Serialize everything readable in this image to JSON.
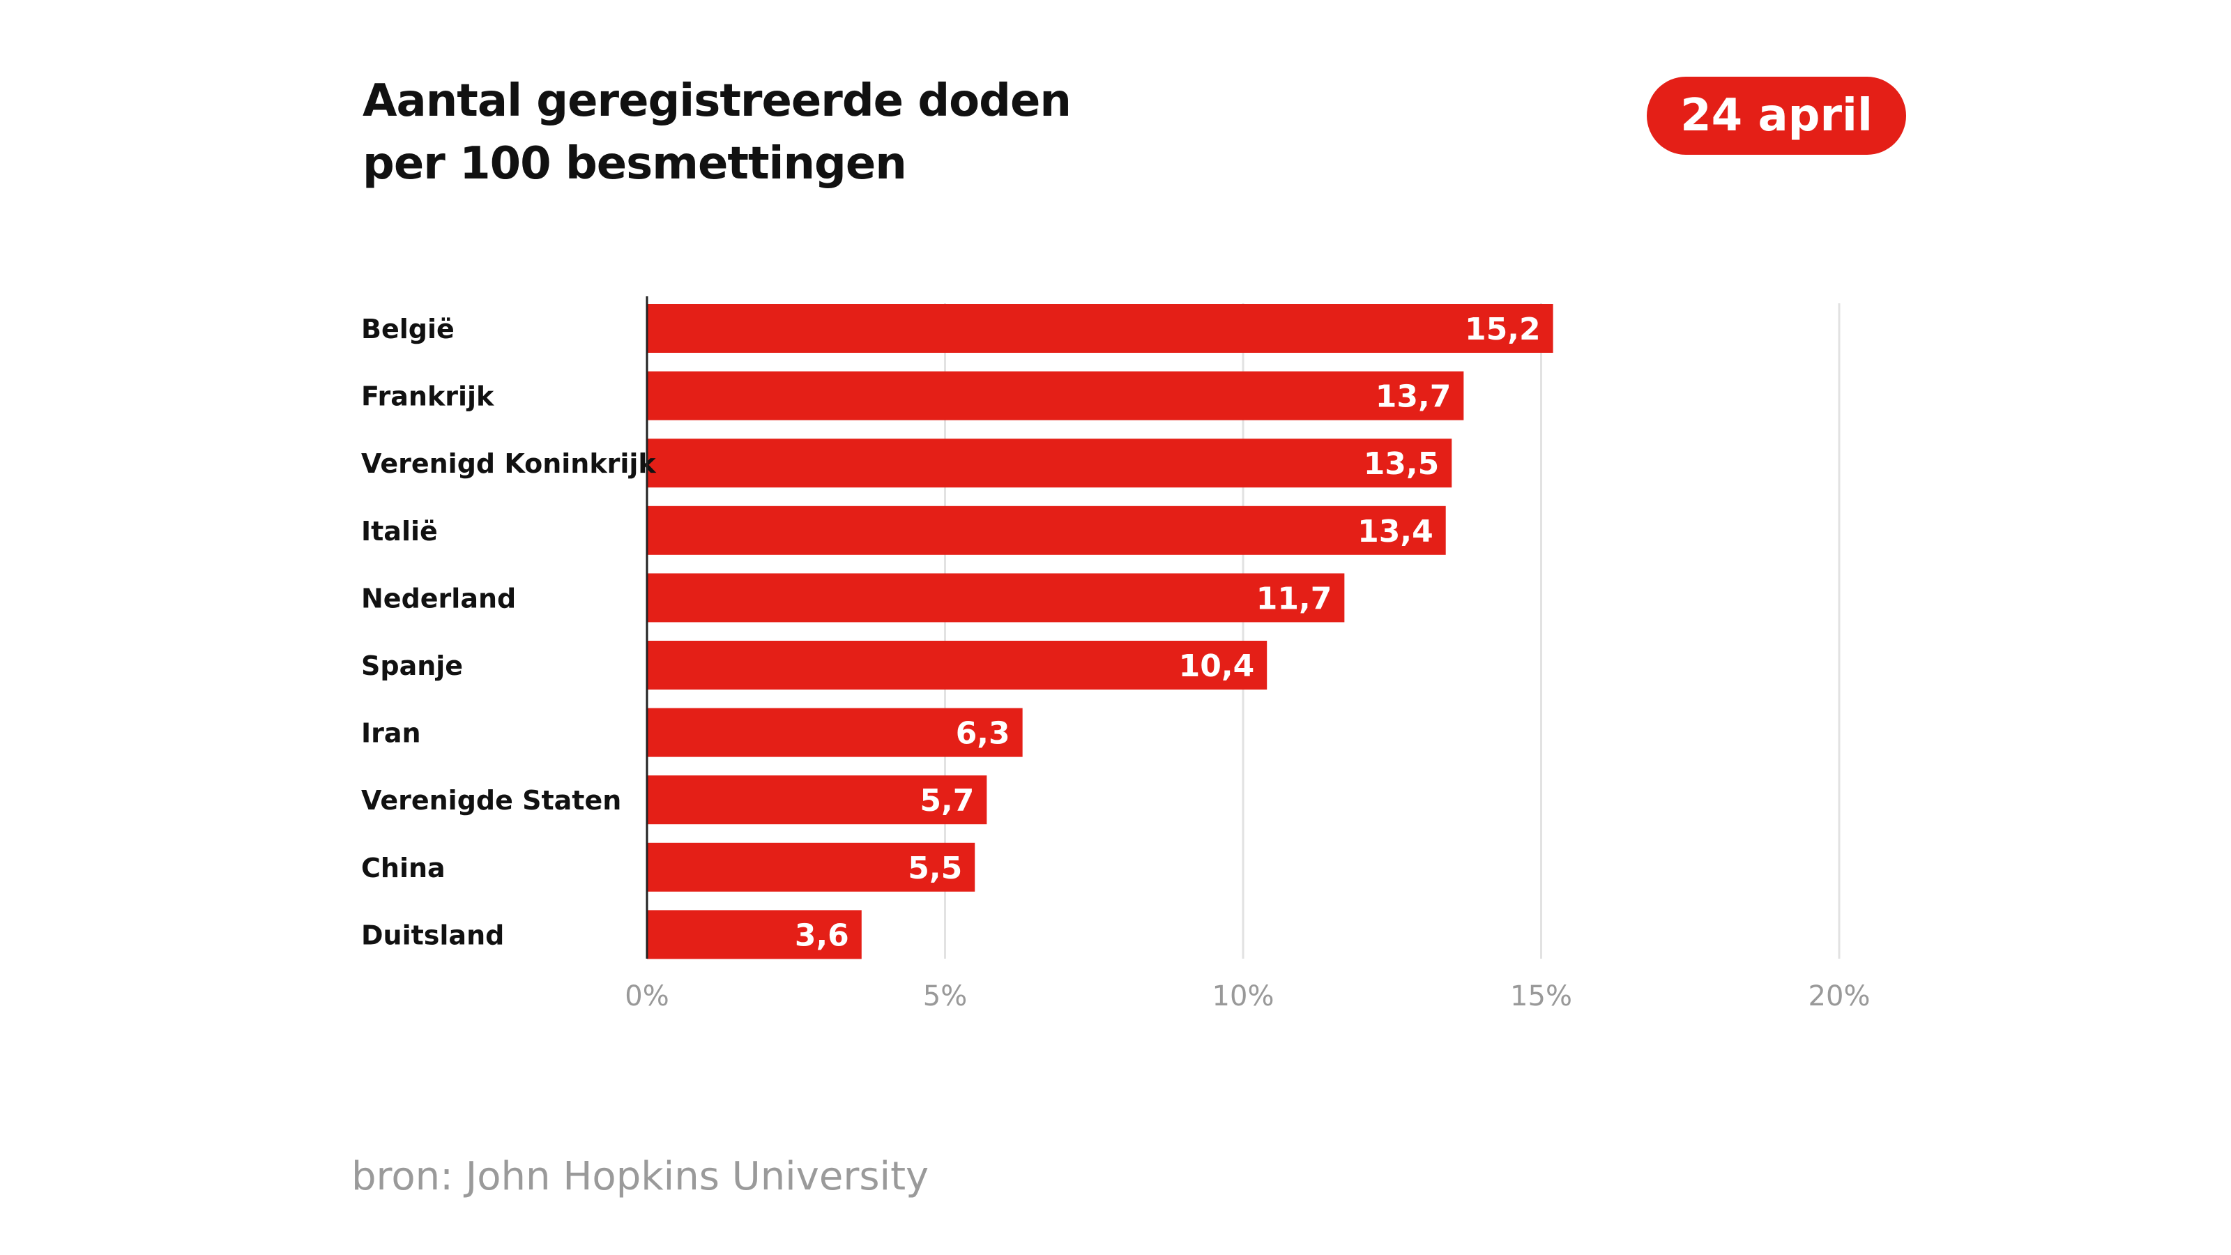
{
  "title_lines": [
    "Aantal geregistreerde doden",
    "per 100 besmettingen"
  ],
  "date_label": "24 april",
  "source": "bron: John Hopkins University",
  "colors": {
    "bar": "#e41f17",
    "grid": "#e2e2e2",
    "axis": "#222222",
    "tick": "#999999",
    "label": "#111111"
  },
  "chart_data": {
    "type": "bar",
    "orientation": "horizontal",
    "categories": [
      "België",
      "Frankrijk",
      "Verenigd Koninkrijk",
      "Italië",
      "Nederland",
      "Spanje",
      "Iran",
      "Verenigde Staten",
      "China",
      "Duitsland"
    ],
    "values": [
      15.2,
      13.7,
      13.5,
      13.4,
      11.7,
      10.4,
      6.3,
      5.7,
      5.5,
      3.6
    ],
    "value_labels": [
      "15,2",
      "13,7",
      "13,5",
      "13,4",
      "11,7",
      "10,4",
      "6,3",
      "5,7",
      "5,5",
      "3,6"
    ],
    "xlim": [
      0,
      20
    ],
    "x_ticks": [
      0,
      5,
      10,
      15,
      20
    ],
    "x_tick_labels": [
      "0%",
      "5%",
      "10%",
      "15%",
      "20%"
    ],
    "grid": true
  }
}
